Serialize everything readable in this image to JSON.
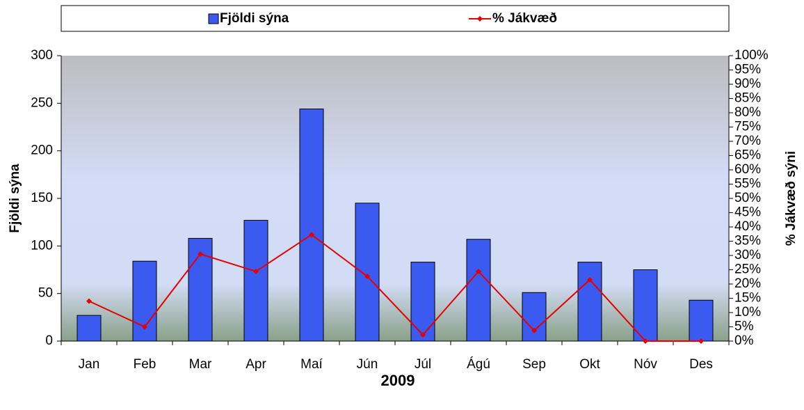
{
  "chart_data": {
    "type": "bar",
    "x_label": "2009",
    "y_label": "Fjöldi sýna",
    "y2_label": "% Jákvæð sýni",
    "categories": [
      "Jan",
      "Feb",
      "Mar",
      "Apr",
      "Maí",
      "Jún",
      "Júl",
      "Ágú",
      "Sep",
      "Okt",
      "Nóv",
      "Des"
    ],
    "series": [
      {
        "name": "Fjöldi sýna",
        "type": "bar",
        "color": "#3b5bf0",
        "values": [
          27,
          84,
          108,
          127,
          244,
          145,
          83,
          107,
          51,
          83,
          75,
          43
        ]
      },
      {
        "name": "% Jákvæð",
        "type": "line",
        "axis": "y2",
        "color": "#e60000",
        "values": [
          14,
          5,
          30.5,
          24.4,
          37.3,
          22.7,
          2.2,
          24.4,
          3.7,
          21.5,
          0,
          0
        ]
      }
    ],
    "ylim": [
      0,
      300
    ],
    "yticks": [
      0,
      50,
      100,
      150,
      200,
      250,
      300
    ],
    "y2lim": [
      0,
      100
    ],
    "y2ticks": [
      {
        "value": 0,
        "label": "0%"
      },
      {
        "value": 5,
        "label": "5%"
      },
      {
        "value": 10,
        "label": "10%"
      },
      {
        "value": 15,
        "label": "15%"
      },
      {
        "value": 20,
        "label": "20%"
      },
      {
        "value": 25,
        "label": "25%"
      },
      {
        "value": 30,
        "label": "30%"
      },
      {
        "value": 35,
        "label": "35%"
      },
      {
        "value": 40,
        "label": "40%"
      },
      {
        "value": 45,
        "label": "45%"
      },
      {
        "value": 50,
        "label": "50%"
      },
      {
        "value": 55,
        "label": "55%"
      },
      {
        "value": 60,
        "label": "60%"
      },
      {
        "value": 65,
        "label": "65%"
      },
      {
        "value": 70,
        "label": "70%"
      },
      {
        "value": 75,
        "label": "75%"
      },
      {
        "value": 80,
        "label": "80%"
      },
      {
        "value": 85,
        "label": "85%"
      },
      {
        "value": 90,
        "label": "90%"
      },
      {
        "value": 95,
        "label": "95%"
      },
      {
        "value": 100,
        "label": "100%"
      }
    ],
    "legend": "top"
  }
}
